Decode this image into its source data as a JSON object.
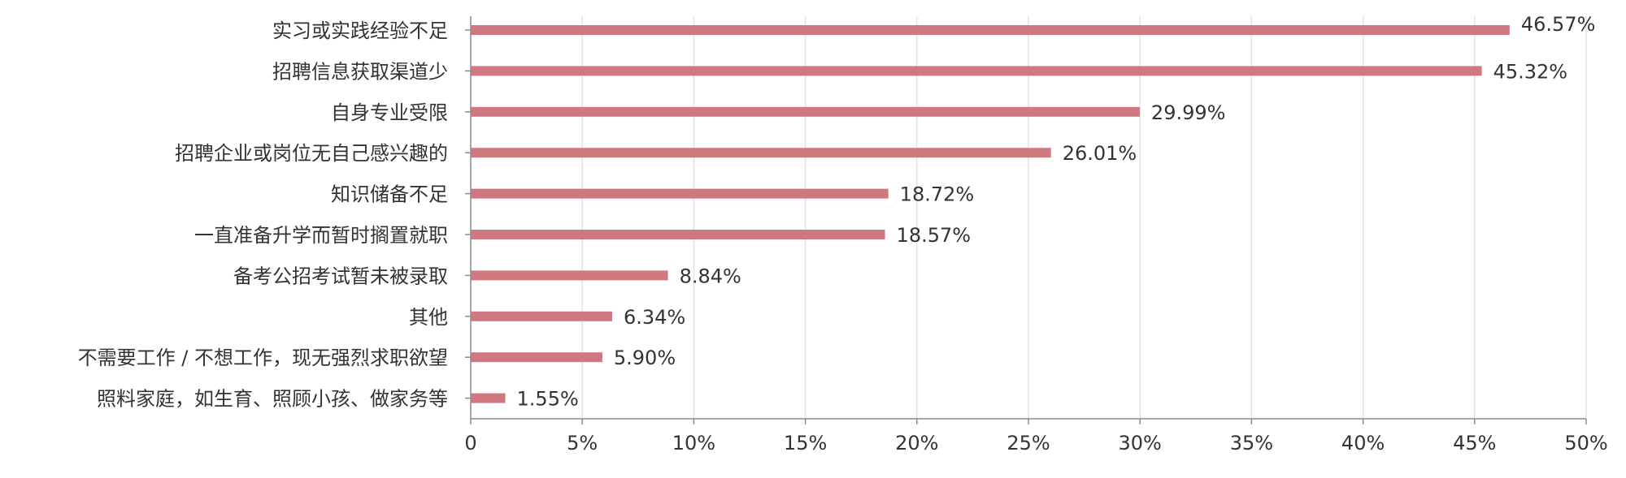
{
  "chart_data": {
    "type": "bar",
    "orientation": "horizontal",
    "categories": [
      "实习或实践经验不足",
      "招聘信息获取渠道少",
      "自身专业受限",
      "招聘企业或岗位无自己感兴趣的",
      "知识储备不足",
      "一直准备升学而暂时搁置就职",
      "备考公招考试暂未被录取",
      "其他",
      "不需要工作 / 不想工作，现无强烈求职欲望",
      "照料家庭，如生育、照顾小孩、做家务等"
    ],
    "values": [
      46.57,
      45.32,
      29.99,
      26.01,
      18.72,
      18.57,
      8.84,
      6.34,
      5.9,
      1.55
    ],
    "value_labels": [
      "46.57%",
      "45.32%",
      "29.99%",
      "26.01%",
      "18.72%",
      "18.57%",
      "8.84%",
      "6.34%",
      "5.90%",
      "1.55%"
    ],
    "xlim": [
      0,
      50
    ],
    "x_ticks": [
      0,
      5,
      10,
      15,
      20,
      25,
      30,
      35,
      40,
      45,
      50
    ],
    "x_tick_labels": [
      "0",
      "5%",
      "10%",
      "15%",
      "20%",
      "25%",
      "30%",
      "35%",
      "40%",
      "45%",
      "50%"
    ],
    "title": "",
    "xlabel": "",
    "ylabel": "",
    "grid": "vertical",
    "legend": "none",
    "colors": {
      "bar": "#d07880",
      "grid": "#e3e3e3",
      "axis": "#8a8a8a",
      "text": "#333333"
    }
  }
}
